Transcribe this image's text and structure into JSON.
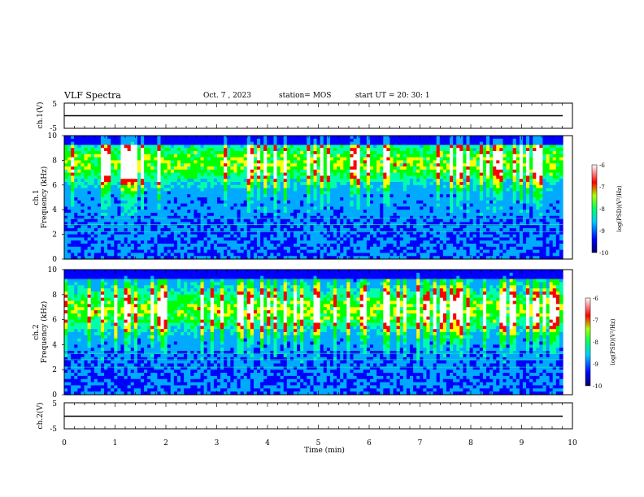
{
  "header": {
    "title": "VLF Spectra",
    "date": "Oct. 7 , 2023",
    "station": "station= MOS",
    "start": "start UT = 20: 30: 1"
  },
  "colors": {
    "colormap": [
      "#000066",
      "#0000ff",
      "#00aaff",
      "#00ffaa",
      "#00ff00",
      "#ffff00",
      "#ff0000",
      "#ffffff"
    ]
  },
  "chart_data": [
    {
      "type": "line",
      "panel": "ch1-voltage",
      "ylabel": "ch.1(V)",
      "ylim": [
        -5,
        5
      ],
      "yticks": [
        "5",
        "-5"
      ],
      "x": [
        0,
        10
      ],
      "values": [
        0,
        0
      ]
    },
    {
      "type": "heatmap",
      "panel": "ch1-spectrogram",
      "ylabel_line1": "ch.1",
      "ylabel_line2": "Frequency (kHz)",
      "ylim": [
        0,
        10
      ],
      "yticks": [
        "0",
        "2",
        "4",
        "6",
        "8",
        "10"
      ],
      "colorbar": {
        "label": "log(PSD)(V²/Hz)",
        "range": [
          -10,
          -6
        ],
        "ticks": [
          "-6",
          "-7",
          "-8",
          "-9",
          "-10"
        ]
      }
    },
    {
      "type": "heatmap",
      "panel": "ch2-spectrogram",
      "ylabel_line1": "ch.2",
      "ylabel_line2": "Frequency (kHz)",
      "ylim": [
        0,
        10
      ],
      "yticks": [
        "0",
        "2",
        "4",
        "6",
        "8",
        "10"
      ],
      "colorbar": {
        "label": "log(PSD)(V²/Hz)",
        "range": [
          -10,
          -6
        ],
        "ticks": [
          "-6",
          "-7",
          "-8",
          "-9",
          "-10"
        ]
      }
    },
    {
      "type": "line",
      "panel": "ch2-voltage",
      "ylabel": "ch.2(V)",
      "ylim": [
        -5,
        5
      ],
      "yticks": [
        "5",
        "-5"
      ],
      "x": [
        0,
        10
      ],
      "values": [
        0,
        0
      ]
    }
  ],
  "xaxis": {
    "label": "Time (min)",
    "ticks": [
      "0",
      "1",
      "2",
      "3",
      "4",
      "5",
      "6",
      "7",
      "8",
      "9",
      "10"
    ],
    "xlim": [
      0,
      10
    ]
  }
}
